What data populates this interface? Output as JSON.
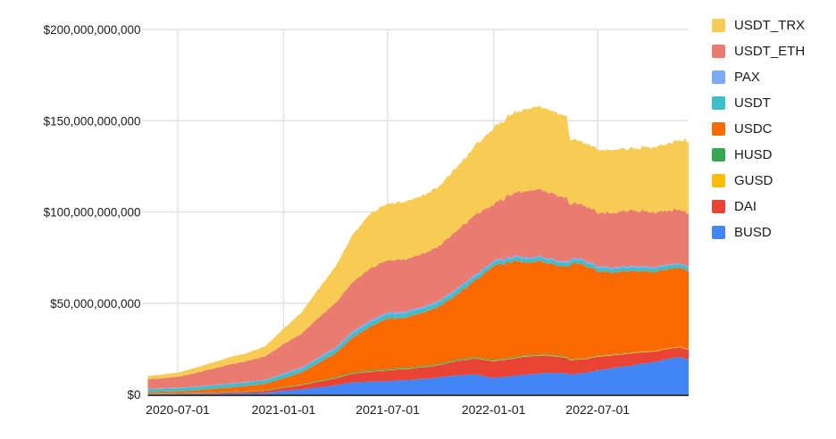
{
  "chart_data": {
    "type": "area",
    "stacked": true,
    "title": "",
    "xlabel": "",
    "ylabel": "",
    "grid": true,
    "legend_position": "right",
    "background": "#ffffff",
    "gridline_color": "#e2e2e2",
    "axis_line_color": "#3c3c3c",
    "text_color": "#1b1b1b",
    "x_domain": [
      "2020-05-10",
      "2022-12-06"
    ],
    "ylim_billions": [
      0,
      200
    ],
    "y_ticks": [
      {
        "value": 0,
        "label": "$0"
      },
      {
        "value": 50,
        "label": "$50,000,000,000"
      },
      {
        "value": 100,
        "label": "$100,000,000,000"
      },
      {
        "value": 150,
        "label": "$150,000,000,000"
      },
      {
        "value": 200,
        "label": "$200,000,000,000"
      }
    ],
    "x_ticks": [
      {
        "date": "2020-07-01",
        "label": "2020-07-01"
      },
      {
        "date": "2021-01-01",
        "label": "2021-01-01"
      },
      {
        "date": "2021-07-01",
        "label": "2021-07-01"
      },
      {
        "date": "2022-01-01",
        "label": "2022-01-01"
      },
      {
        "date": "2022-07-01",
        "label": "2022-07-01"
      }
    ],
    "x": [
      "2020-05-10",
      "2020-06-01",
      "2020-07-01",
      "2020-08-01",
      "2020-09-01",
      "2020-10-01",
      "2020-11-01",
      "2020-12-01",
      "2021-01-01",
      "2021-02-01",
      "2021-03-01",
      "2021-04-01",
      "2021-05-01",
      "2021-06-01",
      "2021-07-01",
      "2021-08-01",
      "2021-09-01",
      "2021-10-01",
      "2021-11-01",
      "2021-12-01",
      "2022-01-01",
      "2022-02-01",
      "2022-03-01",
      "2022-04-01",
      "2022-05-08",
      "2022-05-14",
      "2022-06-01",
      "2022-07-01",
      "2022-08-01",
      "2022-09-01",
      "2022-10-01",
      "2022-11-01",
      "2022-11-20",
      "2022-12-06"
    ],
    "units": "billions_usd",
    "series": [
      {
        "name": "BUSD",
        "color": "#4285F4",
        "values": [
          0.2,
          0.2,
          0.25,
          0.3,
          0.4,
          0.5,
          0.6,
          0.9,
          2.0,
          2.8,
          3.8,
          5.0,
          6.5,
          7.0,
          7.3,
          7.8,
          8.5,
          9.5,
          10.5,
          11.0,
          9.0,
          10.0,
          11.0,
          11.7,
          11.5,
          11.0,
          11.5,
          13.2,
          14.5,
          16.0,
          17.5,
          19.5,
          20.5,
          19.0
        ]
      },
      {
        "name": "DAI",
        "color": "#EA4335",
        "values": [
          0.1,
          0.12,
          0.2,
          0.3,
          0.45,
          0.6,
          0.9,
          1.1,
          1.6,
          2.2,
          3.0,
          3.8,
          4.8,
          5.5,
          5.9,
          6.0,
          6.3,
          6.8,
          8.0,
          8.8,
          9.2,
          9.5,
          9.8,
          9.5,
          8.5,
          7.8,
          7.5,
          7.5,
          6.8,
          6.5,
          5.8,
          5.5,
          5.3,
          5.2
        ]
      },
      {
        "name": "GUSD",
        "color": "#FBBC04",
        "values": [
          0.1,
          0.1,
          0.1,
          0.1,
          0.1,
          0.1,
          0.1,
          0.1,
          0.15,
          0.15,
          0.2,
          0.2,
          0.2,
          0.2,
          0.2,
          0.2,
          0.2,
          0.2,
          0.2,
          0.25,
          0.3,
          0.3,
          0.3,
          0.3,
          0.3,
          0.3,
          0.3,
          0.3,
          0.3,
          0.3,
          0.3,
          0.3,
          0.3,
          0.3
        ]
      },
      {
        "name": "HUSD",
        "color": "#34A853",
        "values": [
          0.12,
          0.12,
          0.15,
          0.15,
          0.2,
          0.25,
          0.27,
          0.3,
          0.3,
          0.35,
          0.4,
          0.5,
          0.55,
          0.6,
          0.6,
          0.6,
          0.6,
          0.6,
          0.6,
          0.6,
          0.5,
          0.5,
          0.5,
          0.45,
          0.4,
          0.35,
          0.3,
          0.3,
          0.25,
          0.2,
          0.1,
          0.06,
          0.06,
          0.06
        ]
      },
      {
        "name": "USDC",
        "color": "#FB6A02",
        "values": [
          0.75,
          0.9,
          1.0,
          1.3,
          1.9,
          2.4,
          2.9,
          3.5,
          4.8,
          6.5,
          9.5,
          13.0,
          19.0,
          24.0,
          27.5,
          27.5,
          29.0,
          31.5,
          36.0,
          42.0,
          51.5,
          52.5,
          51.0,
          50.5,
          49.0,
          52.0,
          52.5,
          46.5,
          45.0,
          44.5,
          43.5,
          43.0,
          43.5,
          42.5
        ]
      },
      {
        "name": "USDT",
        "color": "#41BDC8",
        "values": [
          1.6,
          1.6,
          1.7,
          1.8,
          1.9,
          1.9,
          1.9,
          1.9,
          2.0,
          2.1,
          2.2,
          2.3,
          2.4,
          2.4,
          2.4,
          2.4,
          2.4,
          2.4,
          2.4,
          2.2,
          2.0,
          2.0,
          2.0,
          2.0,
          2.0,
          2.0,
          2.0,
          2.0,
          2.0,
          2.0,
          2.0,
          2.0,
          2.0,
          2.0
        ]
      },
      {
        "name": "PAX",
        "color": "#7BAAF7",
        "values": [
          0.25,
          0.25,
          0.25,
          0.25,
          0.25,
          0.25,
          0.25,
          0.25,
          0.6,
          0.7,
          0.8,
          0.9,
          1.0,
          1.0,
          1.0,
          0.9,
          0.9,
          0.9,
          1.0,
          0.9,
          0.8,
          0.8,
          0.8,
          0.8,
          0.8,
          0.8,
          0.8,
          0.8,
          0.8,
          0.8,
          0.7,
          0.6,
          0.5,
          0.5
        ]
      },
      {
        "name": "USDT_ETH",
        "color": "#EA7B70",
        "values": [
          5.2,
          5.5,
          6.0,
          7.5,
          9.0,
          10.5,
          11.5,
          13.0,
          16.0,
          18.5,
          21.5,
          24.5,
          27.0,
          28.5,
          28.5,
          28.5,
          29.0,
          30.0,
          32.0,
          33.0,
          31.0,
          34.0,
          36.6,
          36.0,
          35.0,
          30.0,
          30.0,
          29.3,
          30.0,
          30.5,
          30.0,
          29.5,
          29.5,
          29.0
        ]
      },
      {
        "name": "USDT_TRX",
        "color": "#F8CB52",
        "values": [
          1.8,
          2.0,
          2.3,
          2.9,
          3.4,
          4.0,
          4.5,
          5.5,
          8.5,
          11.5,
          15.5,
          20.0,
          26.0,
          30.0,
          31.0,
          31.5,
          32.0,
          33.0,
          35.0,
          38.0,
          41.5,
          44.0,
          45.0,
          45.5,
          45.0,
          35.5,
          34.5,
          34.7,
          34.5,
          34.0,
          35.5,
          36.5,
          38.5,
          39.5
        ]
      }
    ],
    "legend": [
      {
        "name": "USDT_TRX",
        "color": "#F8CB52"
      },
      {
        "name": "USDT_ETH",
        "color": "#EA7B70"
      },
      {
        "name": "PAX",
        "color": "#7BAAF7"
      },
      {
        "name": "USDT",
        "color": "#41BDC8"
      },
      {
        "name": "USDC",
        "color": "#FB6A02"
      },
      {
        "name": "HUSD",
        "color": "#34A853"
      },
      {
        "name": "GUSD",
        "color": "#FBBC04"
      },
      {
        "name": "DAI",
        "color": "#EA4335"
      },
      {
        "name": "BUSD",
        "color": "#4285F4"
      }
    ]
  }
}
